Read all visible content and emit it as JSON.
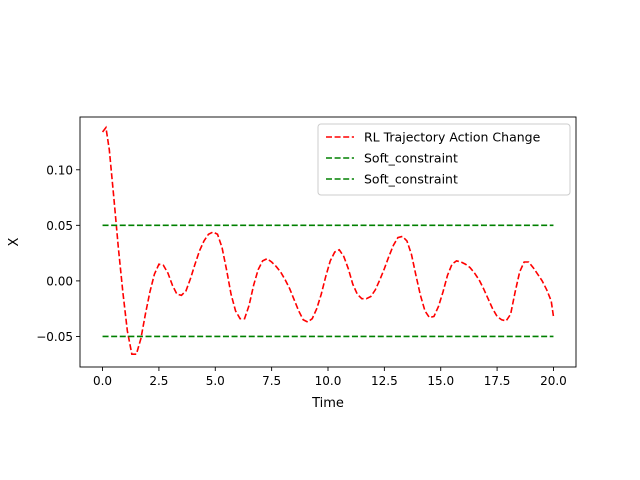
{
  "chart_data": {
    "type": "line",
    "title": "",
    "xlabel": "Time",
    "ylabel": "X",
    "xlim": [
      -1.0,
      21.0
    ],
    "ylim": [
      -0.0775,
      0.1475
    ],
    "xticks": [
      0.0,
      2.5,
      5.0,
      7.5,
      10.0,
      12.5,
      15.0,
      17.5,
      20.0
    ],
    "xtick_labels": [
      "0.0",
      "2.5",
      "5.0",
      "7.5",
      "10.0",
      "12.5",
      "15.0",
      "17.5",
      "20.0"
    ],
    "yticks": [
      -0.05,
      0.0,
      0.05,
      0.1
    ],
    "ytick_labels": [
      "−0.05",
      "0.00",
      "0.05",
      "0.10"
    ],
    "grid": false,
    "legend_position": "top-right",
    "series": [
      {
        "name": "RL Trajectory Action Change",
        "color": "#ff0000",
        "style": "dashed",
        "x": [
          0.0,
          0.15,
          0.3,
          0.5,
          0.7,
          0.9,
          1.1,
          1.3,
          1.5,
          1.7,
          1.9,
          2.1,
          2.3,
          2.5,
          2.7,
          2.9,
          3.1,
          3.3,
          3.5,
          3.7,
          3.9,
          4.1,
          4.3,
          4.5,
          4.7,
          4.9,
          5.1,
          5.3,
          5.5,
          5.7,
          5.9,
          6.1,
          6.3,
          6.5,
          6.7,
          6.9,
          7.1,
          7.3,
          7.5,
          7.7,
          7.9,
          8.1,
          8.3,
          8.5,
          8.7,
          8.9,
          9.1,
          9.3,
          9.5,
          9.7,
          9.9,
          10.1,
          10.3,
          10.5,
          10.7,
          10.9,
          11.1,
          11.3,
          11.5,
          11.7,
          11.9,
          12.1,
          12.3,
          12.5,
          12.7,
          12.9,
          13.1,
          13.3,
          13.5,
          13.7,
          13.9,
          14.1,
          14.3,
          14.5,
          14.7,
          14.9,
          15.1,
          15.3,
          15.5,
          15.7,
          15.9,
          16.1,
          16.3,
          16.5,
          16.7,
          16.9,
          17.1,
          17.3,
          17.5,
          17.7,
          17.9,
          18.1,
          18.3,
          18.5,
          18.7,
          18.9,
          19.1,
          19.3,
          19.5,
          19.7,
          19.9,
          20.0
        ],
        "y": [
          0.134,
          0.138,
          0.118,
          0.075,
          0.03,
          -0.01,
          -0.045,
          -0.066,
          -0.066,
          -0.052,
          -0.03,
          -0.01,
          0.006,
          0.015,
          0.014,
          0.007,
          -0.004,
          -0.012,
          -0.013,
          -0.009,
          0.002,
          0.015,
          0.027,
          0.036,
          0.042,
          0.044,
          0.042,
          0.03,
          0.01,
          -0.012,
          -0.027,
          -0.034,
          -0.034,
          -0.022,
          -0.004,
          0.01,
          0.018,
          0.02,
          0.017,
          0.013,
          0.008,
          0.001,
          -0.007,
          -0.017,
          -0.027,
          -0.035,
          -0.037,
          -0.034,
          -0.025,
          -0.012,
          0.004,
          0.018,
          0.026,
          0.028,
          0.022,
          0.011,
          -0.003,
          -0.012,
          -0.016,
          -0.016,
          -0.014,
          -0.008,
          0.001,
          0.011,
          0.022,
          0.032,
          0.039,
          0.04,
          0.036,
          0.024,
          0.005,
          -0.013,
          -0.027,
          -0.033,
          -0.032,
          -0.023,
          -0.01,
          0.005,
          0.015,
          0.018,
          0.017,
          0.015,
          0.012,
          0.007,
          0.001,
          -0.007,
          -0.016,
          -0.025,
          -0.032,
          -0.035,
          -0.036,
          -0.03,
          -0.01,
          0.008,
          0.017,
          0.017,
          0.012,
          0.006,
          0.0,
          -0.008,
          -0.018,
          -0.032
        ]
      },
      {
        "name": "Soft_constraint",
        "color": "#008000",
        "style": "dashed",
        "x": [
          0.0,
          20.0
        ],
        "y": [
          0.05,
          0.05
        ]
      },
      {
        "name": "Soft_constraint",
        "color": "#008000",
        "style": "dashed",
        "x": [
          0.0,
          20.0
        ],
        "y": [
          -0.05,
          -0.05
        ]
      }
    ]
  }
}
